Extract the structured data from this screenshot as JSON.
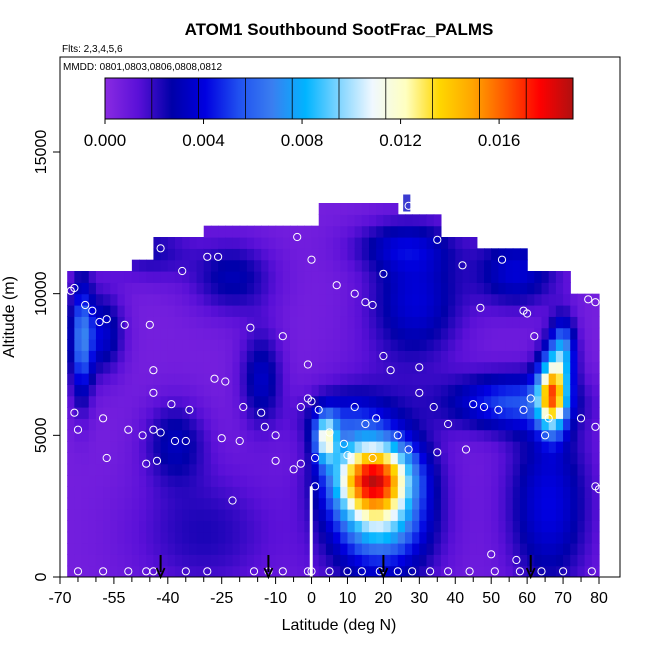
{
  "chart_data": {
    "type": "heatmap",
    "title": "ATOM1 Southbound SootFrac_PALMS",
    "flights_note": "Flts: 2,3,4,5,6",
    "dates_note": "MMDD: 0801,0803,0806,0808,0812",
    "xlabel": "Latitude (deg N)",
    "ylabel": "Altitude (m)",
    "xlim": [
      -70,
      82
    ],
    "ylim": [
      0,
      18000
    ],
    "xticks": [
      -70,
      -55,
      -40,
      -25,
      -10,
      0,
      10,
      20,
      30,
      40,
      50,
      60,
      70,
      80
    ],
    "xtick_labels": [
      "-70",
      "-55",
      "-40",
      "-25",
      "-10",
      "0",
      "10",
      "20",
      "30",
      "40",
      "50",
      "60",
      "70",
      "80"
    ],
    "xminor": [
      -65,
      -60,
      -50,
      -45,
      -35,
      -30,
      -20,
      -15,
      -5,
      5,
      15,
      25,
      35,
      45,
      55,
      65,
      75
    ],
    "yticks": [
      0,
      5000,
      10000,
      15000
    ],
    "ytick_labels": [
      "0",
      "5000",
      "10000",
      "15000"
    ],
    "colorbar": {
      "range": [
        0,
        0.019
      ],
      "ticks": [
        0.0,
        0.004,
        0.008,
        0.012,
        0.016
      ],
      "tick_labels": [
        "0.000",
        "0.004",
        "0.008",
        "0.012",
        "0.016"
      ],
      "colors": [
        "#8a2be2",
        "#5a10d8",
        "#0000a8",
        "#0000e0",
        "#2050f0",
        "#3a7ef0",
        "#00b4ff",
        "#80d4ff",
        "#f0f8ff",
        "#ffffc0",
        "#ffd700",
        "#ffa500",
        "#ff5500",
        "#ff0000",
        "#b01010"
      ]
    },
    "arrows_lat": [
      -42,
      -12,
      20,
      61
    ],
    "grid": false
  }
}
